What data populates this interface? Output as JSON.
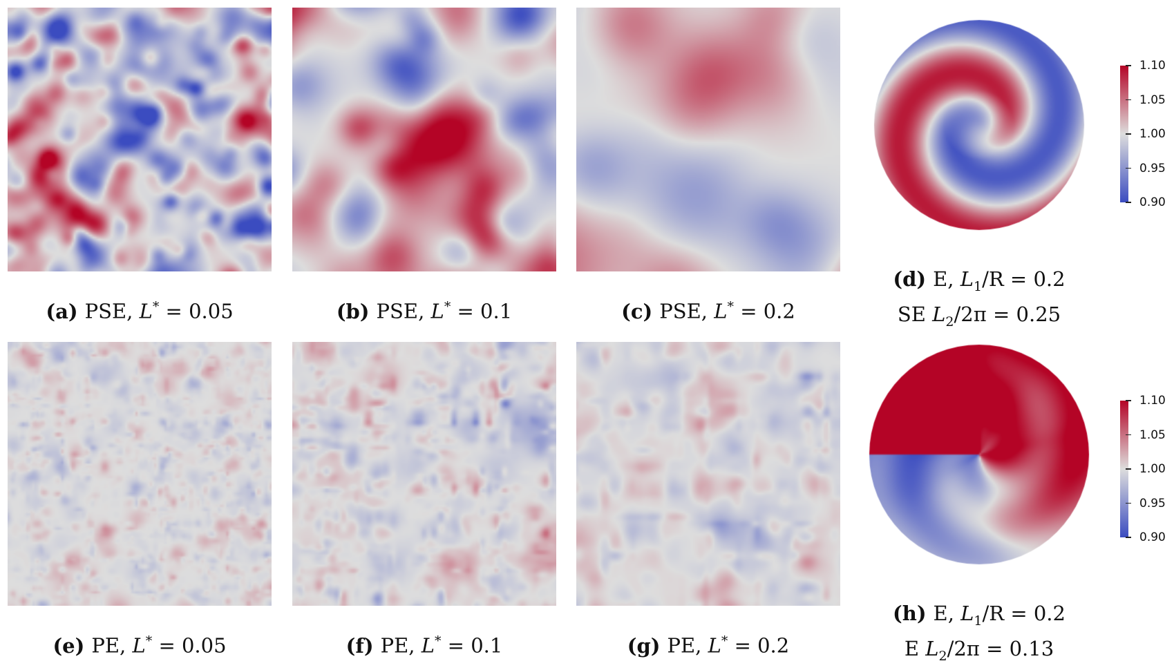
{
  "colormap": {
    "name": "coolwarm",
    "low": "#3b4cc0",
    "mid": "#dddddd",
    "high": "#b40426"
  },
  "colorbar": {
    "range": [
      0.9,
      1.1
    ],
    "ticks": [
      "1.10",
      "1.05",
      "1.00",
      "0.95",
      "0.90"
    ]
  },
  "panels": [
    {
      "label": "(a)",
      "prefix": "PSE, ",
      "var": "L",
      "sup": "*",
      "rest": " = 0.05"
    },
    {
      "label": "(b)",
      "prefix": "PSE, ",
      "var": "L",
      "sup": "*",
      "rest": " = 0.1"
    },
    {
      "label": "(c)",
      "prefix": "PSE, ",
      "var": "L",
      "sup": "*",
      "rest": " = 0.2"
    },
    {
      "label": "(d)",
      "prefix": "E, ",
      "var": "L",
      "sub": "1",
      "rest": "/R = 0.2",
      "prefix2": "SE ",
      "var2": "L",
      "sub2": "2",
      "rest2": "/2π = 0.25"
    },
    {
      "label": "(e)",
      "prefix": "PE, ",
      "var": "L",
      "sup": "*",
      "rest": " = 0.05"
    },
    {
      "label": "(f)",
      "prefix": "PE, ",
      "var": "L",
      "sup": "*",
      "rest": " = 0.1"
    },
    {
      "label": "(g)",
      "prefix": "PE, ",
      "var": "L",
      "sup": "*",
      "rest": " = 0.2"
    },
    {
      "label": "(h)",
      "prefix": "E, ",
      "var": "L",
      "sub": "1",
      "rest": "/R = 0.2",
      "prefix2": "E ",
      "var2": "L",
      "sub2": "2",
      "rest2": "/2π = 0.13"
    }
  ]
}
